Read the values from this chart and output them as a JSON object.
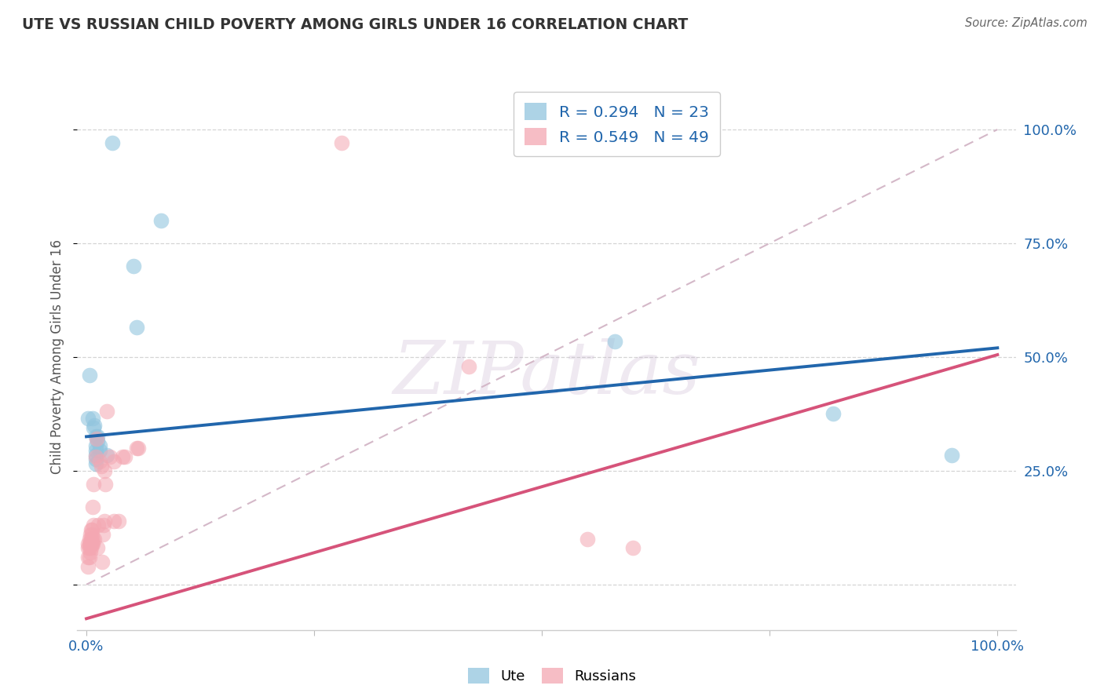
{
  "title": "UTE VS RUSSIAN CHILD POVERTY AMONG GIRLS UNDER 16 CORRELATION CHART",
  "source": "Source: ZipAtlas.com",
  "ylabel": "Child Poverty Among Girls Under 16",
  "legend_ute": "R = 0.294   N = 23",
  "legend_russian": "R = 0.549   N = 49",
  "legend_label_ute": "Ute",
  "legend_label_russian": "Russians",
  "ute_color": "#92c5de",
  "russian_color": "#f4a7b2",
  "ute_line_color": "#2166ac",
  "russian_line_color": "#d6537a",
  "diag_line_color": "#d4b8c8",
  "watermark": "ZIPatlas",
  "ute_line": [
    0.0,
    0.325,
    1.0,
    0.52
  ],
  "russian_line": [
    0.0,
    -0.075,
    1.0,
    0.505
  ],
  "ute_points": [
    [
      0.003,
      0.46
    ],
    [
      0.028,
      0.97
    ],
    [
      0.052,
      0.7
    ],
    [
      0.055,
      0.565
    ],
    [
      0.082,
      0.8
    ],
    [
      0.007,
      0.365
    ],
    [
      0.008,
      0.345
    ],
    [
      0.009,
      0.35
    ],
    [
      0.01,
      0.325
    ],
    [
      0.01,
      0.305
    ],
    [
      0.01,
      0.295
    ],
    [
      0.01,
      0.285
    ],
    [
      0.01,
      0.275
    ],
    [
      0.01,
      0.265
    ],
    [
      0.012,
      0.325
    ],
    [
      0.012,
      0.315
    ],
    [
      0.015,
      0.305
    ],
    [
      0.015,
      0.295
    ],
    [
      0.022,
      0.285
    ],
    [
      0.58,
      0.535
    ],
    [
      0.82,
      0.375
    ],
    [
      0.95,
      0.285
    ],
    [
      0.002,
      0.365
    ]
  ],
  "russian_points": [
    [
      0.002,
      0.04
    ],
    [
      0.002,
      0.06
    ],
    [
      0.002,
      0.08
    ],
    [
      0.002,
      0.09
    ],
    [
      0.003,
      0.06
    ],
    [
      0.003,
      0.08
    ],
    [
      0.003,
      0.09
    ],
    [
      0.003,
      0.1
    ],
    [
      0.004,
      0.07
    ],
    [
      0.004,
      0.09
    ],
    [
      0.004,
      0.11
    ],
    [
      0.005,
      0.08
    ],
    [
      0.005,
      0.09
    ],
    [
      0.005,
      0.1
    ],
    [
      0.005,
      0.12
    ],
    [
      0.006,
      0.09
    ],
    [
      0.006,
      0.11
    ],
    [
      0.006,
      0.12
    ],
    [
      0.007,
      0.09
    ],
    [
      0.007,
      0.1
    ],
    [
      0.007,
      0.17
    ],
    [
      0.008,
      0.13
    ],
    [
      0.008,
      0.22
    ],
    [
      0.009,
      0.1
    ],
    [
      0.01,
      0.28
    ],
    [
      0.011,
      0.32
    ],
    [
      0.012,
      0.08
    ],
    [
      0.013,
      0.13
    ],
    [
      0.015,
      0.27
    ],
    [
      0.016,
      0.26
    ],
    [
      0.017,
      0.05
    ],
    [
      0.018,
      0.11
    ],
    [
      0.019,
      0.13
    ],
    [
      0.02,
      0.14
    ],
    [
      0.02,
      0.25
    ],
    [
      0.021,
      0.22
    ],
    [
      0.022,
      0.38
    ],
    [
      0.026,
      0.28
    ],
    [
      0.03,
      0.27
    ],
    [
      0.03,
      0.14
    ],
    [
      0.035,
      0.14
    ],
    [
      0.04,
      0.28
    ],
    [
      0.042,
      0.28
    ],
    [
      0.055,
      0.3
    ],
    [
      0.057,
      0.3
    ],
    [
      0.28,
      0.97
    ],
    [
      0.42,
      0.48
    ],
    [
      0.55,
      0.1
    ],
    [
      0.6,
      0.08
    ]
  ],
  "xlim": [
    -0.01,
    1.02
  ],
  "ylim": [
    -0.1,
    1.1
  ],
  "background_color": "#ffffff",
  "grid_color": "#d5d5d5",
  "title_color": "#333333",
  "axis_label_color": "#555555",
  "tick_color": "#2166ac"
}
